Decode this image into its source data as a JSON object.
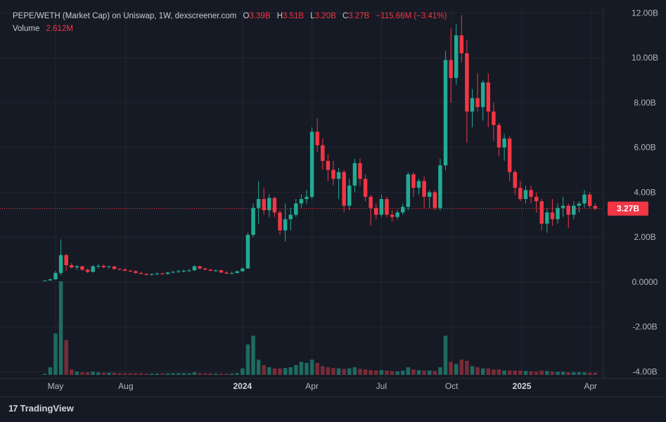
{
  "header": {
    "title": "PEPE/WETH (Market Cap) on Uniswap, 1W, dexscreener.com",
    "ohlc": [
      {
        "key": "O",
        "value": "3.39B"
      },
      {
        "key": "H",
        "value": "3.51B"
      },
      {
        "key": "L",
        "value": "3.20B"
      },
      {
        "key": "C",
        "value": "3.27B"
      }
    ],
    "change": "−115.66M (−3.41%)",
    "volume_label": "Volume",
    "volume_value": "2.612M"
  },
  "footer": {
    "brand": "TradingView"
  },
  "colors": {
    "background": "#161a25",
    "grid": "#232732",
    "up": "#22ab94",
    "down": "#f23645",
    "up_volume": "#1e6b61",
    "down_volume": "#7a2b37",
    "last_price_label": "#f23645"
  },
  "chart_data": {
    "type": "candlestick",
    "title": "PEPE/WETH (Market Cap) on Uniswap, 1W, dexscreener.com",
    "interval": "1W",
    "ylim": [
      -4.3,
      12.2
    ],
    "y_unit": "B",
    "y_ticks": [
      "12.00B",
      "10.00B",
      "8.00B",
      "6.00B",
      "4.00B",
      "2.00B",
      "0.0000",
      "-2.00B",
      "-4.00B"
    ],
    "y_tick_values": [
      12,
      10,
      8,
      6,
      4,
      2,
      0,
      -2,
      -4
    ],
    "x_ticks": [
      {
        "label": "May",
        "date": "2023-05-01",
        "bold": false
      },
      {
        "label": "Aug",
        "date": "2023-08-01",
        "bold": false
      },
      {
        "label": "2024",
        "date": "2024-01-01",
        "bold": true
      },
      {
        "label": "Apr",
        "date": "2024-04-01",
        "bold": false
      },
      {
        "label": "Jul",
        "date": "2024-07-01",
        "bold": false
      },
      {
        "label": "Oct",
        "date": "2024-10-01",
        "bold": false
      },
      {
        "label": "2025",
        "date": "2025-01-01",
        "bold": true
      },
      {
        "label": "Apr",
        "date": "2025-04-01",
        "bold": false
      }
    ],
    "first_bar_date": "2023-04-17",
    "last_price": 3.27,
    "last_price_label": "3.27B",
    "volume": {
      "label": "Volume",
      "value": "2.612M"
    },
    "grid": true,
    "candles": [
      [
        0.05,
        0.08,
        0.05,
        0.07
      ],
      [
        0.07,
        0.15,
        0.06,
        0.12
      ],
      [
        0.12,
        0.5,
        0.1,
        0.4
      ],
      [
        0.4,
        1.9,
        0.3,
        1.2
      ],
      [
        1.2,
        1.25,
        0.5,
        0.75
      ],
      [
        0.75,
        0.85,
        0.6,
        0.65
      ],
      [
        0.65,
        0.75,
        0.55,
        0.7
      ],
      [
        0.7,
        0.72,
        0.5,
        0.55
      ],
      [
        0.55,
        0.6,
        0.4,
        0.45
      ],
      [
        0.45,
        0.75,
        0.42,
        0.7
      ],
      [
        0.7,
        0.8,
        0.6,
        0.72
      ],
      [
        0.72,
        0.78,
        0.62,
        0.66
      ],
      [
        0.66,
        0.73,
        0.6,
        0.69
      ],
      [
        0.69,
        0.72,
        0.55,
        0.58
      ],
      [
        0.58,
        0.62,
        0.52,
        0.55
      ],
      [
        0.55,
        0.62,
        0.48,
        0.5
      ],
      [
        0.5,
        0.55,
        0.45,
        0.48
      ],
      [
        0.48,
        0.52,
        0.38,
        0.4
      ],
      [
        0.4,
        0.45,
        0.34,
        0.36
      ],
      [
        0.36,
        0.4,
        0.3,
        0.32
      ],
      [
        0.32,
        0.38,
        0.28,
        0.35
      ],
      [
        0.35,
        0.42,
        0.3,
        0.38
      ],
      [
        0.38,
        0.42,
        0.32,
        0.36
      ],
      [
        0.36,
        0.45,
        0.33,
        0.42
      ],
      [
        0.42,
        0.5,
        0.38,
        0.45
      ],
      [
        0.45,
        0.55,
        0.4,
        0.48
      ],
      [
        0.48,
        0.55,
        0.42,
        0.5
      ],
      [
        0.5,
        0.58,
        0.45,
        0.52
      ],
      [
        0.52,
        0.75,
        0.5,
        0.7
      ],
      [
        0.7,
        0.72,
        0.55,
        0.6
      ],
      [
        0.6,
        0.65,
        0.52,
        0.55
      ],
      [
        0.55,
        0.58,
        0.48,
        0.5
      ],
      [
        0.5,
        0.56,
        0.44,
        0.52
      ],
      [
        0.52,
        0.55,
        0.4,
        0.42
      ],
      [
        0.42,
        0.48,
        0.35,
        0.38
      ],
      [
        0.38,
        0.45,
        0.34,
        0.4
      ],
      [
        0.4,
        0.5,
        0.38,
        0.48
      ],
      [
        0.48,
        0.65,
        0.45,
        0.6
      ],
      [
        0.6,
        2.2,
        0.6,
        2.1
      ],
      [
        2.1,
        3.5,
        2.0,
        3.3
      ],
      [
        3.3,
        4.5,
        2.6,
        3.7
      ],
      [
        3.7,
        4.2,
        3.0,
        3.2
      ],
      [
        3.2,
        3.9,
        2.9,
        3.75
      ],
      [
        3.75,
        3.8,
        2.9,
        3.1
      ],
      [
        3.1,
        3.2,
        2.1,
        2.3
      ],
      [
        2.3,
        3.5,
        1.8,
        2.8
      ],
      [
        2.8,
        3.3,
        2.3,
        3.0
      ],
      [
        3.0,
        3.7,
        2.9,
        3.5
      ],
      [
        3.5,
        3.9,
        3.3,
        3.7
      ],
      [
        3.7,
        4.1,
        3.5,
        3.8
      ],
      [
        3.8,
        6.9,
        3.7,
        6.7
      ],
      [
        6.7,
        7.3,
        5.8,
        6.1
      ],
      [
        6.1,
        6.4,
        5.0,
        5.4
      ],
      [
        5.4,
        5.7,
        4.5,
        5.0
      ],
      [
        5.0,
        5.4,
        4.3,
        4.6
      ],
      [
        4.6,
        5.1,
        3.7,
        4.9
      ],
      [
        4.9,
        5.0,
        3.1,
        3.4
      ],
      [
        3.4,
        4.6,
        3.2,
        4.3
      ],
      [
        4.3,
        5.5,
        4.0,
        5.3
      ],
      [
        5.3,
        5.5,
        4.3,
        4.6
      ],
      [
        4.6,
        4.8,
        3.6,
        3.8
      ],
      [
        3.8,
        3.9,
        2.5,
        3.3
      ],
      [
        3.3,
        3.5,
        2.8,
        3.0
      ],
      [
        3.0,
        3.9,
        2.9,
        3.7
      ],
      [
        3.7,
        3.8,
        2.9,
        3.0
      ],
      [
        3.0,
        3.2,
        2.7,
        2.9
      ],
      [
        2.9,
        3.2,
        2.8,
        3.1
      ],
      [
        3.1,
        3.5,
        3.0,
        3.35
      ],
      [
        3.35,
        4.9,
        3.2,
        4.8
      ],
      [
        4.8,
        4.9,
        3.8,
        4.2
      ],
      [
        4.2,
        4.6,
        3.9,
        4.5
      ],
      [
        4.5,
        4.7,
        3.3,
        3.8
      ],
      [
        3.8,
        4.1,
        3.3,
        4.0
      ],
      [
        4.0,
        4.1,
        3.2,
        3.3
      ],
      [
        3.3,
        5.5,
        3.2,
        5.2
      ],
      [
        5.2,
        10.3,
        5.0,
        9.9
      ],
      [
        9.9,
        11.3,
        8.0,
        9.1
      ],
      [
        9.1,
        11.5,
        8.8,
        11.0
      ],
      [
        11.0,
        11.9,
        9.8,
        10.2
      ],
      [
        10.2,
        10.8,
        6.2,
        7.6
      ],
      [
        7.6,
        8.6,
        6.9,
        8.2
      ],
      [
        8.2,
        9.3,
        7.6,
        7.8
      ],
      [
        7.8,
        9.0,
        7.2,
        8.9
      ],
      [
        8.9,
        9.3,
        6.9,
        7.6
      ],
      [
        7.6,
        8.0,
        6.3,
        7.0
      ],
      [
        7.0,
        7.1,
        5.6,
        6.0
      ],
      [
        6.0,
        6.6,
        5.4,
        6.4
      ],
      [
        6.4,
        6.5,
        4.5,
        4.9
      ],
      [
        4.9,
        5.0,
        3.9,
        4.2
      ],
      [
        4.2,
        4.5,
        3.6,
        3.7
      ],
      [
        3.7,
        4.3,
        3.5,
        4.1
      ],
      [
        4.1,
        4.3,
        3.5,
        3.8
      ],
      [
        3.8,
        4.0,
        3.1,
        3.6
      ],
      [
        3.6,
        3.7,
        2.3,
        2.6
      ],
      [
        2.6,
        3.3,
        2.2,
        3.1
      ],
      [
        3.1,
        3.7,
        2.5,
        2.8
      ],
      [
        2.8,
        3.5,
        2.6,
        3.3
      ],
      [
        3.3,
        3.8,
        2.9,
        3.4
      ],
      [
        3.4,
        3.5,
        2.4,
        3.0
      ],
      [
        3.0,
        3.6,
        2.8,
        3.4
      ],
      [
        3.4,
        3.6,
        3.1,
        3.5
      ],
      [
        3.5,
        4.1,
        3.3,
        3.9
      ],
      [
        3.9,
        4.0,
        3.3,
        3.39
      ],
      [
        3.39,
        3.51,
        3.2,
        3.27
      ]
    ],
    "volumes": [
      0.05,
      0.35,
      1.9,
      4.3,
      1.6,
      0.25,
      0.15,
      0.12,
      0.12,
      0.15,
      0.12,
      0.1,
      0.1,
      0.1,
      0.08,
      0.08,
      0.07,
      0.07,
      0.07,
      0.06,
      0.06,
      0.06,
      0.07,
      0.07,
      0.08,
      0.08,
      0.08,
      0.07,
      0.12,
      0.08,
      0.07,
      0.07,
      0.06,
      0.06,
      0.06,
      0.06,
      0.08,
      0.3,
      1.4,
      1.8,
      0.7,
      0.45,
      0.35,
      0.3,
      0.3,
      0.32,
      0.35,
      0.45,
      0.6,
      0.55,
      0.7,
      0.55,
      0.4,
      0.35,
      0.32,
      0.3,
      0.28,
      0.3,
      0.35,
      0.28,
      0.25,
      0.22,
      0.2,
      0.22,
      0.2,
      0.18,
      0.16,
      0.2,
      0.35,
      0.25,
      0.22,
      0.2,
      0.2,
      0.18,
      0.35,
      1.8,
      0.6,
      0.5,
      0.7,
      0.65,
      0.4,
      0.35,
      0.3,
      0.3,
      0.25,
      0.25,
      0.2,
      0.2,
      0.2,
      0.2,
      0.18,
      0.16,
      0.15,
      0.2,
      0.18,
      0.15,
      0.14,
      0.14,
      0.12,
      0.12,
      0.12,
      0.12,
      0.1,
      0.1
    ],
    "volume_max": 4.3
  }
}
